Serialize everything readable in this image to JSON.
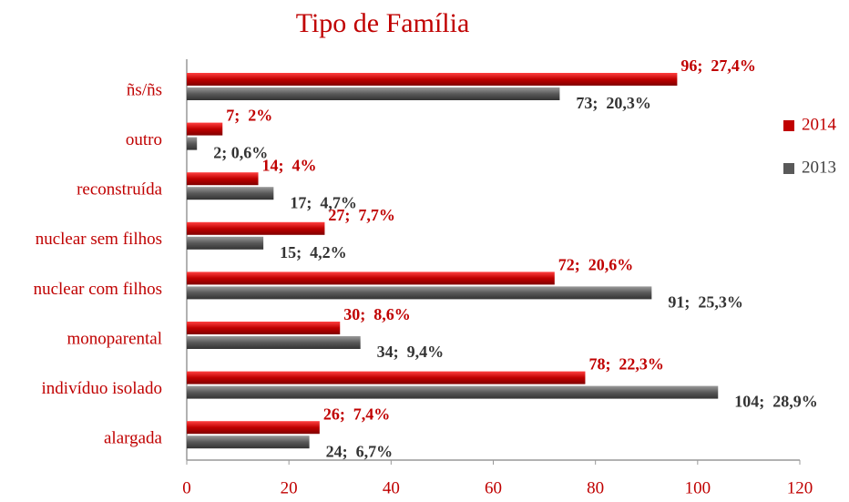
{
  "chart_data": {
    "type": "bar",
    "orientation": "horizontal",
    "title": "Tipo de Família",
    "categories": [
      "ñs/ñs",
      "outro",
      "reconstruída",
      "nuclear sem filhos",
      "nuclear com filhos",
      "monoparental",
      "indivíduo isolado",
      "alargada"
    ],
    "series": [
      {
        "name": "2014",
        "color": "#c00000",
        "values": [
          96,
          7,
          14,
          27,
          72,
          30,
          78,
          26
        ],
        "value_labels": [
          "96;  27,4%",
          "7;  2%",
          "14;  4%",
          "27;  7,7%",
          "72;  20,6%",
          "30;  8,6%",
          "78;  22,3%",
          "26;  7,4%"
        ]
      },
      {
        "name": "2013",
        "color": "#595959",
        "values": [
          73,
          2,
          17,
          15,
          91,
          34,
          104,
          24
        ],
        "value_labels": [
          "73;  20,3%",
          "2; 0,6%",
          "17;  4,7%",
          "15;  4,2%",
          "91;  25,3%",
          "34;  9,4%",
          "104;  28,9%",
          "24;  6,7%"
        ]
      }
    ],
    "xlim": [
      0,
      120
    ],
    "xticks": [
      0,
      20,
      40,
      60,
      80,
      100,
      120
    ],
    "legend": "right"
  }
}
